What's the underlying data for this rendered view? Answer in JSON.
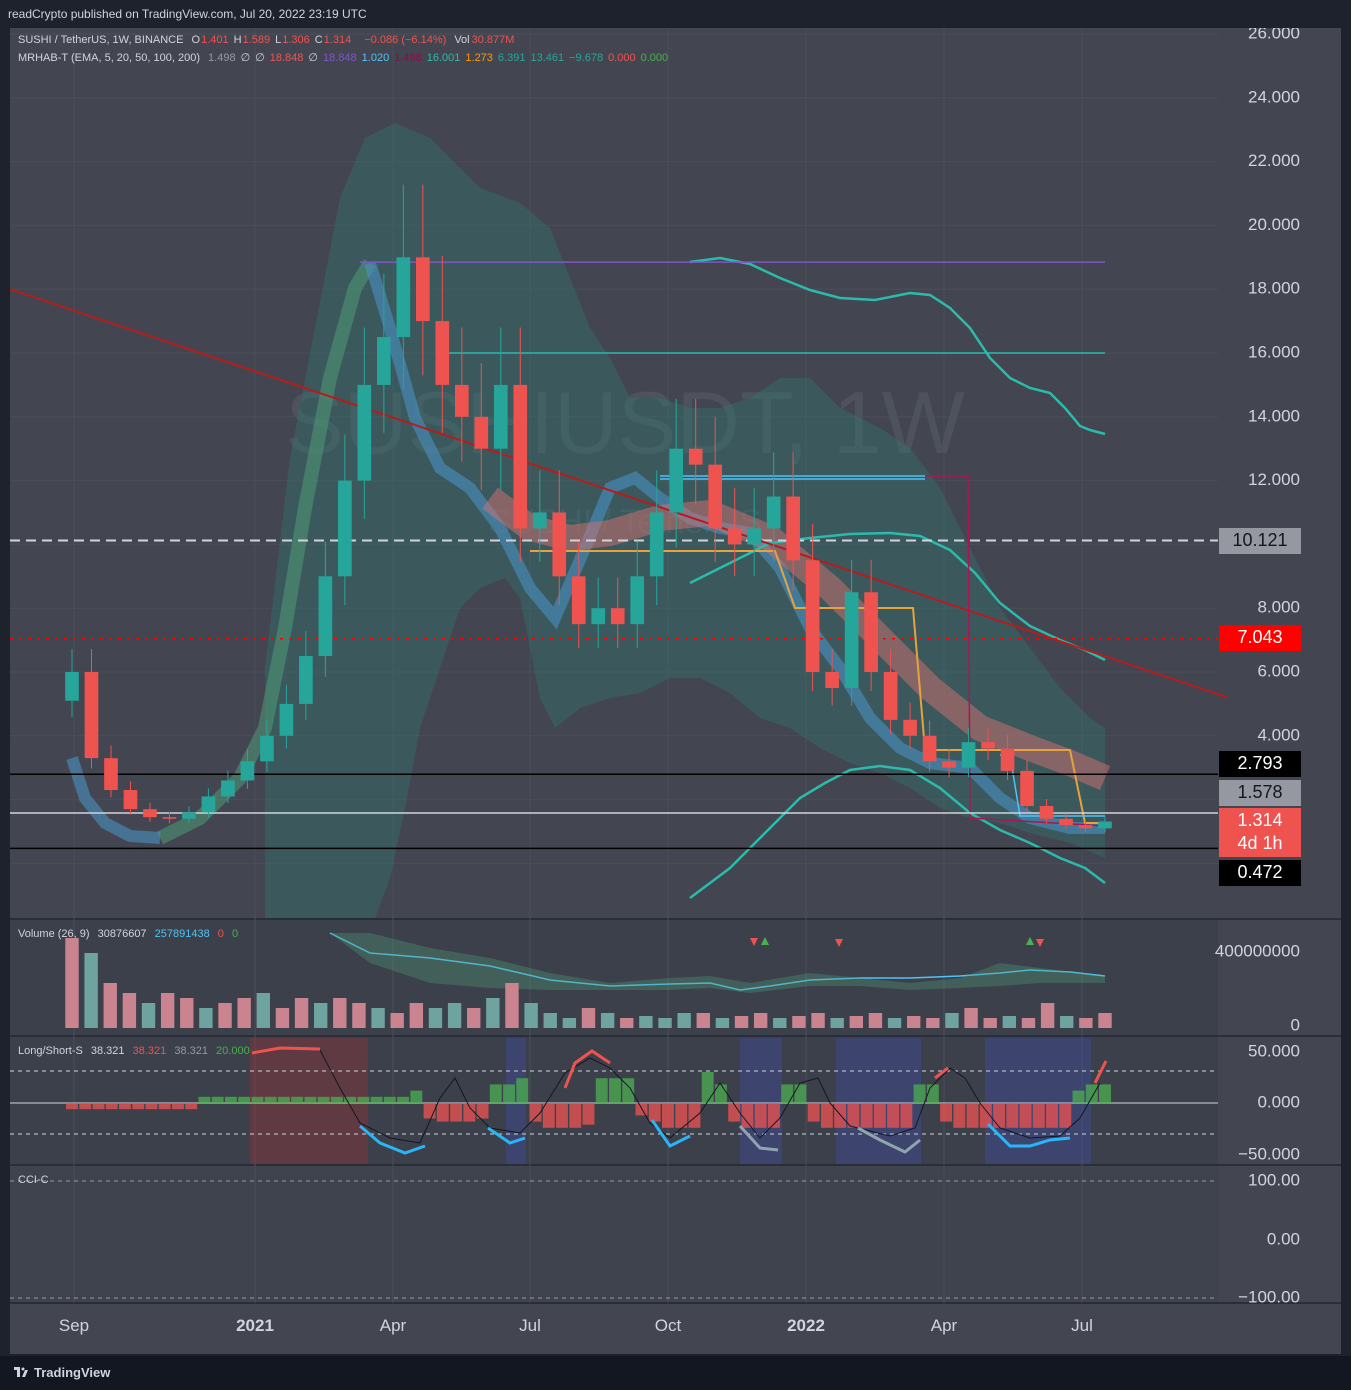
{
  "header": {
    "published": "readCrypto published on TradingView.com, Jul 20, 2022 23:19 UTC"
  },
  "footer": {
    "brand": "TradingView"
  },
  "colors": {
    "bg": "#434651",
    "panel_bg": "#454a56",
    "up": "#26a69a",
    "down": "#ef5350",
    "grid": "#50545f",
    "text": "#d1d4dc"
  },
  "legend": {
    "symbol": "SUSHI / TetherUS, 1W, BINANCE",
    "ohlc": [
      {
        "k": "O",
        "v": "1.401"
      },
      {
        "k": "H",
        "v": "1.589"
      },
      {
        "k": "L",
        "v": "1.306"
      },
      {
        "k": "C",
        "v": "1.314"
      }
    ],
    "change": "−0.086 (−6.14%)",
    "vol_label": "Vol",
    "vol_value": "30.877M",
    "indicator_name": "MRHAB-T (EMA, 5, 20, 50, 100, 200)",
    "indicator_values": [
      "1.498",
      "∅",
      "∅",
      "18.848",
      "∅",
      "18.848",
      "1.020",
      "1.498",
      "16.001",
      "1.273",
      "6.391",
      "13.461",
      "−9.678",
      "0.000",
      "0.000"
    ],
    "indicator_colors": [
      "#9598a1",
      "#d1d4dc",
      "#d1d4dc",
      "#ef5350",
      "#d1d4dc",
      "#7e57c2",
      "#4fc3f7",
      "#880e4f",
      "#2bbbad",
      "#ff9800",
      "#26a69a",
      "#26a69a",
      "#26a69a",
      "#ef5350",
      "#4caf50"
    ]
  },
  "watermark": {
    "line1": "SUSHIUSDT, 1W",
    "line2": "SUSHI / TetherUS"
  },
  "volume_legend": {
    "name": "Volume (26, 9)",
    "v1": "30876607",
    "v2": "257891438",
    "v3": "0",
    "v4": "0"
  },
  "ls_legend": {
    "name": "Long/Short-S",
    "v1": "38.321",
    "v2": "38.321",
    "v3": "38.321",
    "v4": "20.000"
  },
  "cci_legend": {
    "name": "CCI-C"
  },
  "price_axis": {
    "ticks": [
      "26.000",
      "24.000",
      "22.000",
      "20.000",
      "18.000",
      "16.000",
      "14.000",
      "12.000",
      "8.000",
      "6.000",
      "4.000"
    ]
  },
  "price_labels": [
    {
      "value": "10.121",
      "bg": "#9598a1",
      "fg": "#131722"
    },
    {
      "value": "7.043",
      "bg": "#ff0000",
      "fg": "#ffffff"
    },
    {
      "value": "2.793",
      "bg": "#000000",
      "fg": "#ffffff"
    },
    {
      "value": "1.578",
      "bg": "#9598a1",
      "fg": "#131722"
    },
    {
      "value": "1.314",
      "bg": "#ef5350",
      "fg": "#ffffff"
    },
    {
      "value": "4d 1h",
      "bg": "#ef5350",
      "fg": "#ffffff"
    },
    {
      "value": "0.472",
      "bg": "#000000",
      "fg": "#ffffff"
    }
  ],
  "volume_axis": {
    "ticks": [
      "400000000",
      "0"
    ]
  },
  "ls_axis": {
    "ticks": [
      "50.000",
      "0.000",
      "−50.000"
    ]
  },
  "cci_axis": {
    "ticks": [
      "100.00",
      "0.00",
      "−100.00"
    ]
  },
  "time_axis": {
    "ticks": [
      "Sep",
      "2021",
      "Apr",
      "Jul",
      "Oct",
      "2022",
      "Apr",
      "Jul"
    ]
  },
  "chart_data": {
    "type": "candlestick",
    "symbol": "SUSHI / TetherUS",
    "interval": "1W",
    "exchange": "BINANCE",
    "x_ticks": [
      "Sep",
      "2021",
      "Apr",
      "Jul",
      "Oct",
      "2022",
      "Apr",
      "Jul"
    ],
    "y_range": [
      0.472,
      26.0
    ],
    "close_path": [
      [
        "Sep",
        6.0
      ],
      [
        "Sep",
        3.3
      ],
      [
        "Sep",
        2.3
      ],
      [
        "Oct",
        1.7
      ],
      [
        "Oct",
        1.45
      ],
      [
        "Nov",
        1.4
      ],
      [
        "Nov",
        1.6
      ],
      [
        "Nov",
        2.1
      ],
      [
        "Dec",
        2.6
      ],
      [
        "Dec",
        3.2
      ],
      [
        "Dec",
        4.0
      ],
      [
        "2021",
        5.0
      ],
      [
        "2021",
        6.5
      ],
      [
        "Jan",
        9.0
      ],
      [
        "Jan",
        12.0
      ],
      [
        "Feb",
        15.0
      ],
      [
        "Feb",
        16.5
      ],
      [
        "Mar",
        19.0
      ],
      [
        "Mar",
        17.0
      ],
      [
        "Mar",
        15.0
      ],
      [
        "Apr",
        14.0
      ],
      [
        "Apr",
        13.0
      ],
      [
        "May",
        15.0
      ],
      [
        "May",
        10.5
      ],
      [
        "May",
        11.0
      ],
      [
        "Jun",
        9.0
      ],
      [
        "Jun",
        7.5
      ],
      [
        "Jun",
        8.0
      ],
      [
        "Jul",
        7.5
      ],
      [
        "Jul",
        9.0
      ],
      [
        "Aug",
        11.0
      ],
      [
        "Aug",
        13.0
      ],
      [
        "Sep",
        12.5
      ],
      [
        "Sep",
        10.5
      ],
      [
        "Oct",
        10.0
      ],
      [
        "Oct",
        10.5
      ],
      [
        "Nov",
        11.5
      ],
      [
        "Nov",
        9.5
      ],
      [
        "Nov",
        6.0
      ],
      [
        "Dec",
        5.5
      ],
      [
        "Dec",
        8.5
      ],
      [
        "2022",
        6.0
      ],
      [
        "Jan",
        4.5
      ],
      [
        "Feb",
        4.0
      ],
      [
        "Feb",
        3.2
      ],
      [
        "Mar",
        3.0
      ],
      [
        "Mar",
        3.8
      ],
      [
        "Apr",
        3.6
      ],
      [
        "Apr",
        2.9
      ],
      [
        "May",
        1.8
      ],
      [
        "May",
        1.4
      ],
      [
        "Jun",
        1.2
      ],
      [
        "Jun",
        1.1
      ],
      [
        "Jul",
        1.314
      ]
    ],
    "horizontal_levels": [
      {
        "value": 18.848,
        "color": "#7e57c2"
      },
      {
        "value": 16.001,
        "color": "#2bbbad"
      },
      {
        "value": 12.05,
        "color": "#4fc3f7"
      },
      {
        "value": 10.121,
        "color": "#d1d4dc",
        "style": "dashed"
      },
      {
        "value": 7.043,
        "color": "#ff0000",
        "style": "dotted"
      },
      {
        "value": 2.793,
        "color": "#000000"
      },
      {
        "value": 1.578,
        "color": "#d1d4dc"
      },
      {
        "value": 0.472,
        "color": "#000000"
      }
    ],
    "trendline": {
      "from": [
        2.6,
        18.0
      ],
      "to": [
        1218,
        5.2
      ],
      "color": "#b71c1c"
    },
    "last_price": 1.314,
    "countdown": "4d 1h"
  }
}
